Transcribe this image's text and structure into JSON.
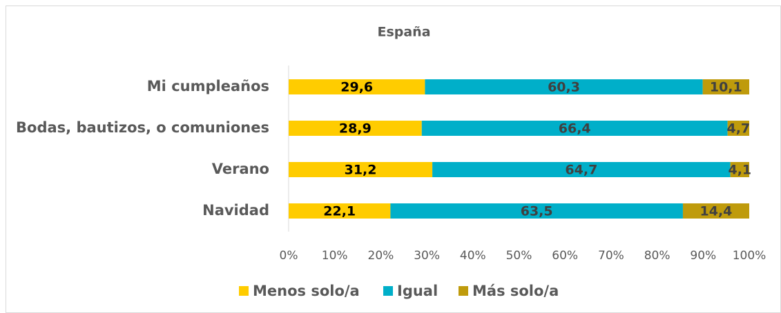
{
  "chart_data": {
    "type": "stacked-bar-horizontal",
    "title": "España",
    "categories": [
      "Mi cumpleaños",
      "Bodas, bautizos, o comuniones",
      "Verano",
      "Navidad"
    ],
    "series": [
      {
        "name": "Menos solo/a",
        "color": "#FFCC00",
        "label_color": "#000000",
        "values": [
          29.6,
          28.9,
          31.2,
          22.1
        ],
        "value_labels": [
          "29,6",
          "28,9",
          "31,2",
          "22,1"
        ]
      },
      {
        "name": "Igual",
        "color": "#00AFC9",
        "label_color": "#404040",
        "values": [
          60.3,
          66.4,
          64.7,
          63.5
        ],
        "value_labels": [
          "60,3",
          "66,4",
          "64,7",
          "63,5"
        ]
      },
      {
        "name": "Más solo/a",
        "color": "#BF9B0C",
        "label_color": "#404040",
        "values": [
          10.1,
          4.7,
          4.1,
          14.4
        ],
        "value_labels": [
          "10,1",
          "4,7",
          "4,1",
          "14,4"
        ]
      }
    ],
    "xlim": [
      0,
      100
    ],
    "xticks": [
      {
        "value": 0,
        "label": "0%"
      },
      {
        "value": 10,
        "label": "10%"
      },
      {
        "value": 20,
        "label": "20%"
      },
      {
        "value": 30,
        "label": "30%"
      },
      {
        "value": 40,
        "label": "40%"
      },
      {
        "value": 50,
        "label": "50%"
      },
      {
        "value": 60,
        "label": "60%"
      },
      {
        "value": 70,
        "label": "70%"
      },
      {
        "value": 80,
        "label": "80%"
      },
      {
        "value": 90,
        "label": "90%"
      },
      {
        "value": 100,
        "label": "100%"
      }
    ],
    "legend": "bottom"
  }
}
